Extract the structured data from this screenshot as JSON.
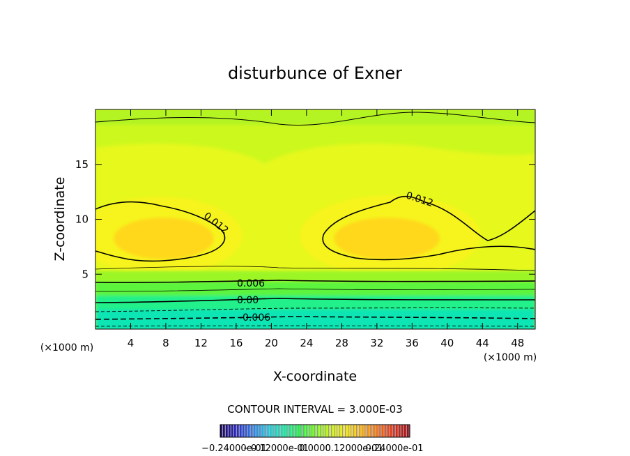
{
  "chart_data": {
    "type": "heatmap",
    "title": "disturbunce of Exner",
    "xlabel": "X-coordinate",
    "ylabel": "Z-coordinate",
    "x_unit": "(×1000 m)",
    "y_unit": "(×1000 m)",
    "xlim": [
      0,
      50
    ],
    "ylim": [
      0,
      20
    ],
    "x_ticks": [
      4,
      8,
      12,
      16,
      20,
      24,
      28,
      32,
      36,
      40,
      44,
      48
    ],
    "y_ticks": [
      5,
      10,
      15
    ],
    "contour_interval_label": "CONTOUR INTERVAL = 3.000E-03",
    "contour_labels": [
      "0.012",
      "0.012",
      "0.006",
      "0.00",
      "-0.006"
    ],
    "colorbar_labels": [
      "−0.24000e-01",
      "−0.12000e-01",
      "0.0000",
      "0.12000e-01",
      "0.24000e-01"
    ],
    "colorbar_range": [
      -0.024,
      0.024
    ],
    "colorbar_colors": [
      "#1a0a5a",
      "#2a2ac0",
      "#2f7fe0",
      "#28c8d8",
      "#20e8a8",
      "#28f050",
      "#7cf828",
      "#c8f020",
      "#f0e81c",
      "#f8b81a",
      "#f07a1a",
      "#e03a16",
      "#a01010"
    ],
    "fill_colors": {
      "negative_strong": "#10e6b4",
      "negative": "#24f08a",
      "zero": "#5cf43c",
      "weak_positive": "#9cf628",
      "positive": "#cdf81e",
      "positive_mid": "#e6f81c",
      "positive_high": "#f6f41a",
      "max": "#ffd81a"
    }
  }
}
